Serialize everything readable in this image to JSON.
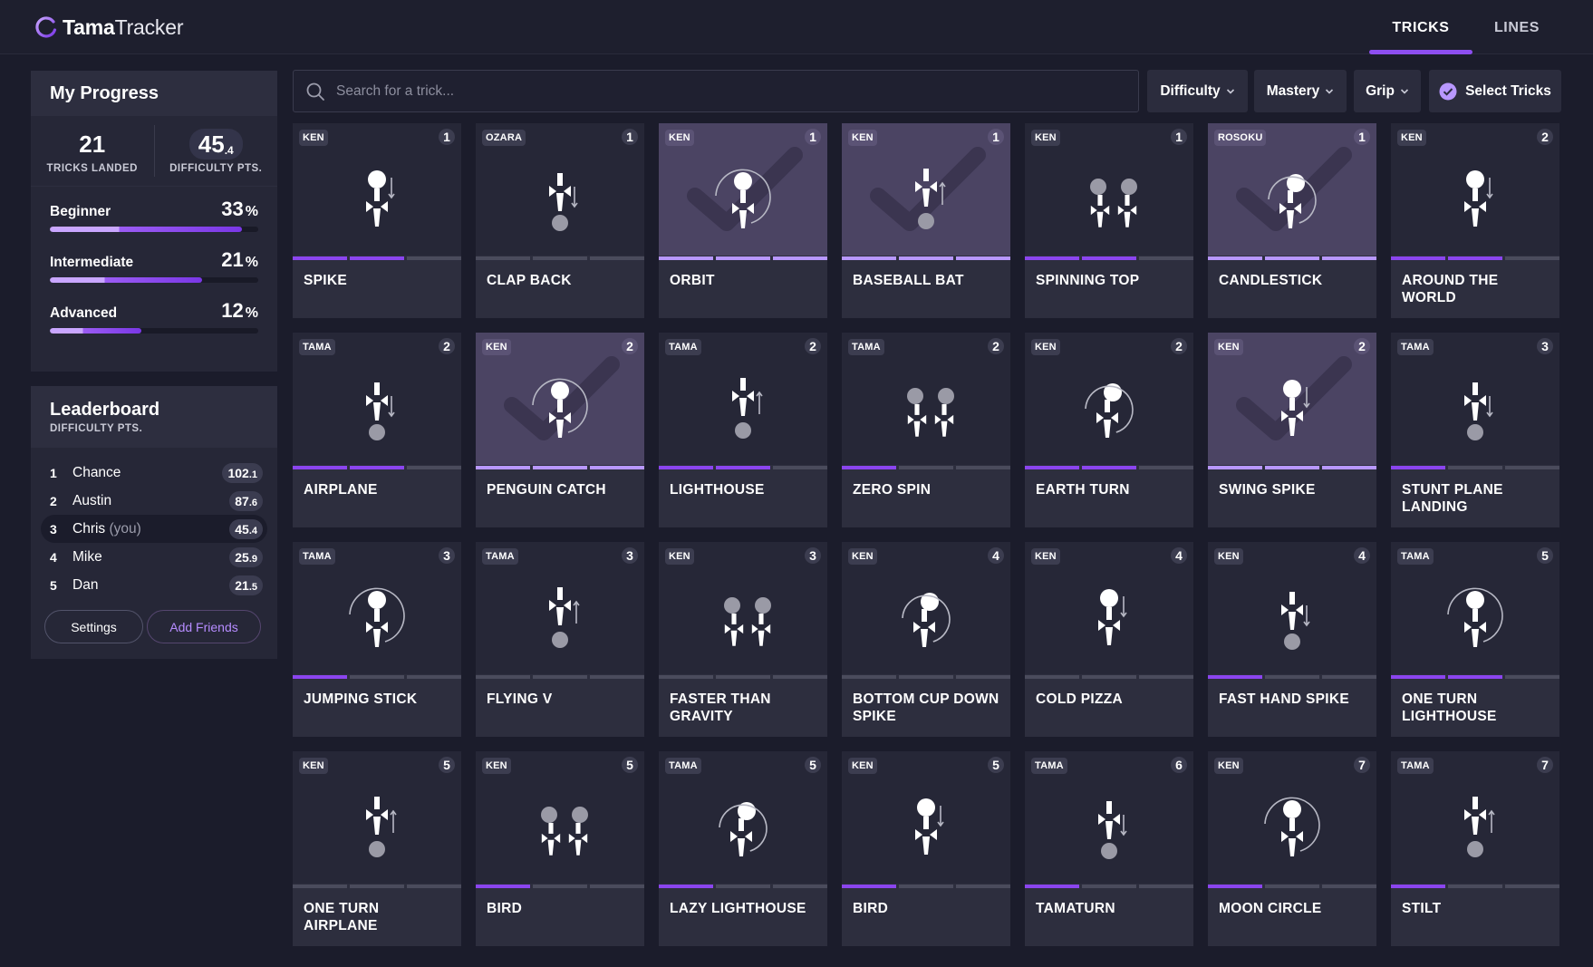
{
  "app": {
    "name_bold": "Tama",
    "name_light": "Tracker"
  },
  "nav": {
    "tabs": [
      "TRICKS",
      "LINES"
    ],
    "active": "TRICKS"
  },
  "progress": {
    "title": "My Progress",
    "tricks_landed": "21",
    "tricks_landed_label": "TRICKS LANDED",
    "difficulty_int": "45",
    "difficulty_dec": ".4",
    "difficulty_label": "DIFFICULTY PTS.",
    "levels": [
      {
        "name": "Beginner",
        "pct": "33",
        "pct_sign": "%",
        "value": 0.92
      },
      {
        "name": "Intermediate",
        "pct": "21",
        "pct_sign": "%",
        "value": 0.73
      },
      {
        "name": "Advanced",
        "pct": "12",
        "pct_sign": "%",
        "value": 0.44
      }
    ]
  },
  "leaderboard": {
    "title": "Leaderboard",
    "subtitle": "DIFFICULTY PTS.",
    "rows": [
      {
        "rank": "1",
        "name": "Chance",
        "you": "",
        "score_int": "102",
        "score_dec": ".1"
      },
      {
        "rank": "2",
        "name": "Austin",
        "you": "",
        "score_int": "87",
        "score_dec": ".6"
      },
      {
        "rank": "3",
        "name": "Chris",
        "you": "(you)",
        "score_int": "45",
        "score_dec": ".4"
      },
      {
        "rank": "4",
        "name": "Mike",
        "you": "",
        "score_int": "25",
        "score_dec": ".9"
      },
      {
        "rank": "5",
        "name": "Dan",
        "you": "",
        "score_int": "21",
        "score_dec": ".5"
      }
    ],
    "settings_label": "Settings",
    "add_friends_label": "Add Friends"
  },
  "toolbar": {
    "search_placeholder": "Search for a trick...",
    "filters": [
      "Difficulty",
      "Mastery",
      "Grip"
    ],
    "select_label": "Select Tricks"
  },
  "colors": {
    "accent": "#8b45ef",
    "accent_light": "#b897ff",
    "card": "#2d2e3e",
    "mastered": "#4b4463"
  },
  "tricks": [
    {
      "name": "Spike",
      "category": "KEN",
      "level": "1",
      "progress": 2,
      "mastered": false,
      "icon": "spike-icon"
    },
    {
      "name": "Clap Back",
      "category": "OZARA",
      "level": "1",
      "progress": 0,
      "mastered": false,
      "icon": "clap-back-icon"
    },
    {
      "name": "Orbit",
      "category": "KEN",
      "level": "1",
      "progress": 3,
      "mastered": true,
      "icon": "orbit-icon"
    },
    {
      "name": "Baseball Bat",
      "category": "KEN",
      "level": "1",
      "progress": 3,
      "mastered": true,
      "icon": "baseball-bat-icon"
    },
    {
      "name": "Spinning Top",
      "category": "KEN",
      "level": "1",
      "progress": 2,
      "mastered": false,
      "icon": "spinning-top-icon"
    },
    {
      "name": "Candlestick",
      "category": "ROSOKU",
      "level": "1",
      "progress": 3,
      "mastered": true,
      "icon": "candlestick-icon"
    },
    {
      "name": "Around the World",
      "category": "KEN",
      "level": "2",
      "progress": 2,
      "mastered": false,
      "icon": "around-the-world-icon"
    },
    {
      "name": "Airplane",
      "category": "TAMA",
      "level": "2",
      "progress": 2,
      "mastered": false,
      "icon": "airplane-icon"
    },
    {
      "name": "Penguin Catch",
      "category": "KEN",
      "level": "2",
      "progress": 3,
      "mastered": true,
      "icon": "penguin-catch-icon"
    },
    {
      "name": "Lighthouse",
      "category": "TAMA",
      "level": "2",
      "progress": 2,
      "mastered": false,
      "icon": "lighthouse-icon"
    },
    {
      "name": "Zero Spin",
      "category": "TAMA",
      "level": "2",
      "progress": 1,
      "mastered": false,
      "icon": "zero-spin-icon"
    },
    {
      "name": "Earth Turn",
      "category": "KEN",
      "level": "2",
      "progress": 2,
      "mastered": false,
      "icon": "earth-turn-icon"
    },
    {
      "name": "Swing Spike",
      "category": "KEN",
      "level": "2",
      "progress": 3,
      "mastered": true,
      "icon": "swing-spike-icon"
    },
    {
      "name": "Stunt Plane Landing",
      "category": "TAMA",
      "level": "3",
      "progress": 1,
      "mastered": false,
      "icon": "stunt-plane-landing-icon"
    },
    {
      "name": "Jumping Stick",
      "category": "TAMA",
      "level": "3",
      "progress": 1,
      "mastered": false,
      "icon": "jumping-stick-icon"
    },
    {
      "name": "Flying V",
      "category": "TAMA",
      "level": "3",
      "progress": 0,
      "mastered": false,
      "icon": "flying-v-icon"
    },
    {
      "name": "Faster Than Gravity",
      "category": "KEN",
      "level": "3",
      "progress": 0,
      "mastered": false,
      "icon": "faster-than-gravity-icon"
    },
    {
      "name": "Bottom Cup Down Spike",
      "category": "KEN",
      "level": "4",
      "progress": 0,
      "mastered": false,
      "icon": "bottom-cup-down-spike-icon"
    },
    {
      "name": "Cold Pizza",
      "category": "KEN",
      "level": "4",
      "progress": 0,
      "mastered": false,
      "icon": "cold-pizza-icon"
    },
    {
      "name": "Fast Hand Spike",
      "category": "KEN",
      "level": "4",
      "progress": 1,
      "mastered": false,
      "icon": "fast-hand-spike-icon"
    },
    {
      "name": "One Turn Lighthouse",
      "category": "TAMA",
      "level": "5",
      "progress": 2,
      "mastered": false,
      "icon": "one-turn-lighthouse-icon"
    },
    {
      "name": "One Turn Airplane",
      "category": "KEN",
      "level": "5",
      "progress": 0,
      "mastered": false,
      "icon": "one-turn-airplane-icon"
    },
    {
      "name": "Bird",
      "category": "KEN",
      "level": "5",
      "progress": 1,
      "mastered": false,
      "icon": "bird-icon"
    },
    {
      "name": "Lazy Lighthouse",
      "category": "TAMA",
      "level": "5",
      "progress": 1,
      "mastered": false,
      "icon": "lazy-lighthouse-icon"
    },
    {
      "name": "Bird",
      "category": "KEN",
      "level": "5",
      "progress": 1,
      "mastered": false,
      "icon": "bird-icon"
    },
    {
      "name": "Tamaturn",
      "category": "TAMA",
      "level": "6",
      "progress": 1,
      "mastered": false,
      "icon": "tamaturn-icon"
    },
    {
      "name": "Moon Circle",
      "category": "KEN",
      "level": "7",
      "progress": 1,
      "mastered": false,
      "icon": "moon-circle-icon"
    },
    {
      "name": "Stilt",
      "category": "TAMA",
      "level": "7",
      "progress": 1,
      "mastered": false,
      "icon": "stilt-icon"
    }
  ]
}
